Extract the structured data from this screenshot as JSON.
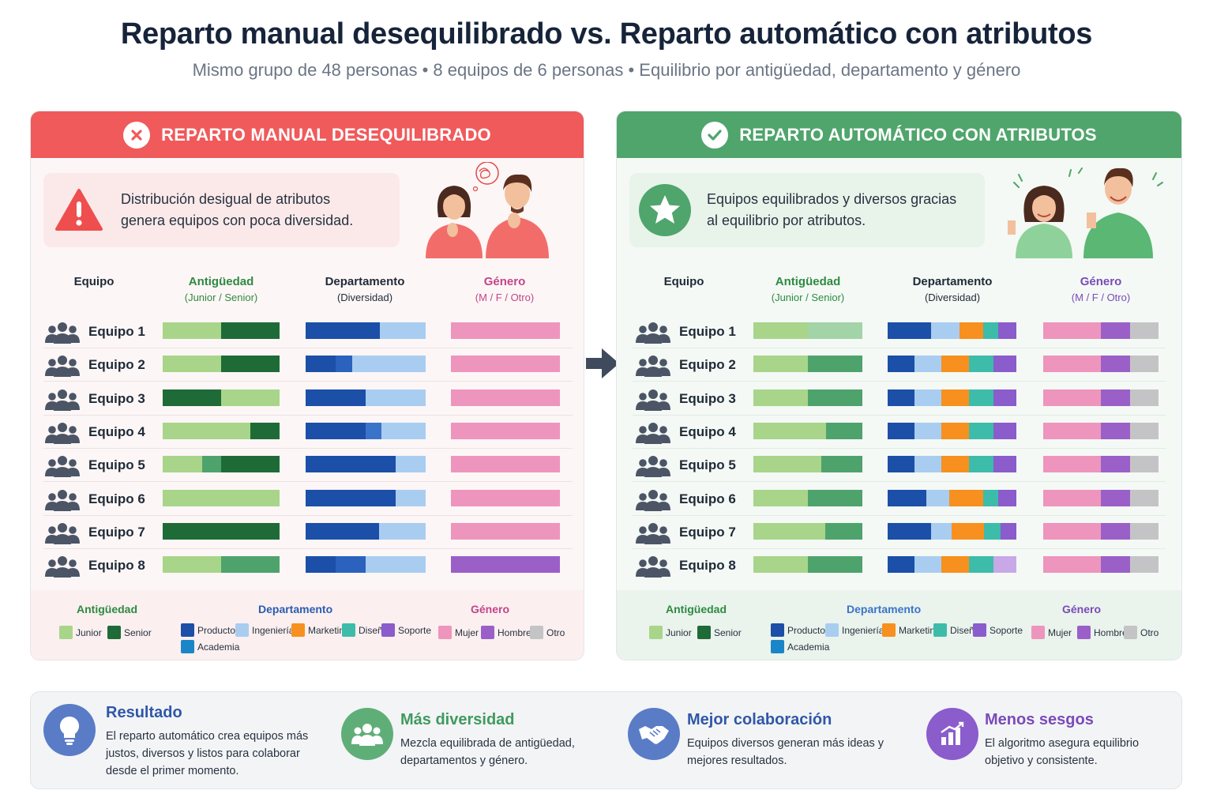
{
  "title": "Reparto manual desequilibrado vs. Reparto automático con atributos",
  "subtitle": "Mismo grupo de 48 personas • 8 equipos de 6 personas • Equilibrio por antigüedad, departamento y género",
  "colors": {
    "junior": "#a8d58a",
    "senior": "#1e6b37",
    "senior_mid": "#4ea36d",
    "senior_light": "#a2d4a8",
    "producto": "#1b4fa8",
    "ingenieria": "#a9cdf0",
    "marketing": "#f7901e",
    "diseno": "#3dbcaa",
    "soporte": "#8a5ccc",
    "academia": "#1a86c8",
    "mujer": "#ee95bd",
    "hombre": "#9a60c8",
    "otro": "#c4c4c6",
    "red": "#f05a5b",
    "green": "#4fa56b"
  },
  "manual": {
    "header": "REPARTO MANUAL DESEQUILIBRADO",
    "header_icon": "x-circle-icon",
    "callout": "Distribución desigual de atributos genera equipos con poca diversidad.",
    "columns": {
      "team": "Equipo",
      "seniority": "Antigüedad",
      "seniority_sub": "(Junior / Senior)",
      "department": "Departamento",
      "department_sub": "(Diversidad)",
      "gender": "Género",
      "gender_sub": "(M / F / Otro)"
    },
    "teams": [
      {
        "name": "Equipo 1",
        "seniority": [
          [
            "#a8d58a",
            0.5
          ],
          [
            "#1e6b37",
            0.5
          ]
        ],
        "department": [
          [
            "#1b4fa8",
            0.62
          ],
          [
            "#a9cdf0",
            0.38
          ]
        ],
        "gender": [
          [
            "#ee95bd",
            1.0
          ]
        ]
      },
      {
        "name": "Equipo 2",
        "seniority": [
          [
            "#a8d58a",
            0.5
          ],
          [
            "#1e6b37",
            0.5
          ]
        ],
        "department": [
          [
            "#1b4fa8",
            0.25
          ],
          [
            "#2a62bd",
            0.14
          ],
          [
            "#a9cdf0",
            0.61
          ]
        ],
        "gender": [
          [
            "#ee95bd",
            1.0
          ]
        ]
      },
      {
        "name": "Equipo 3",
        "seniority": [
          [
            "#1e6b37",
            0.5
          ],
          [
            "#a8d58a",
            0.5
          ]
        ],
        "department": [
          [
            "#1b4fa8",
            0.5
          ],
          [
            "#a9cdf0",
            0.5
          ]
        ],
        "gender": [
          [
            "#ee95bd",
            1.0
          ]
        ]
      },
      {
        "name": "Equipo 4",
        "seniority": [
          [
            "#a8d58a",
            0.75
          ],
          [
            "#1e6b37",
            0.25
          ]
        ],
        "department": [
          [
            "#1b4fa8",
            0.5
          ],
          [
            "#3a74c9",
            0.13
          ],
          [
            "#a9cdf0",
            0.37
          ]
        ],
        "gender": [
          [
            "#ee95bd",
            1.0
          ]
        ]
      },
      {
        "name": "Equipo 5",
        "seniority": [
          [
            "#a8d58a",
            0.34
          ],
          [
            "#4ea36d",
            0.16
          ],
          [
            "#1e6b37",
            0.5
          ]
        ],
        "department": [
          [
            "#1b4fa8",
            0.75
          ],
          [
            "#a9cdf0",
            0.25
          ]
        ],
        "gender": [
          [
            "#ee95bd",
            1.0
          ]
        ]
      },
      {
        "name": "Equipo 6",
        "seniority": [
          [
            "#a8d58a",
            1.0
          ]
        ],
        "department": [
          [
            "#1b4fa8",
            0.75
          ],
          [
            "#a9cdf0",
            0.25
          ]
        ],
        "gender": [
          [
            "#ee95bd",
            1.0
          ]
        ]
      },
      {
        "name": "Equipo 7",
        "seniority": [
          [
            "#1e6b37",
            1.0
          ]
        ],
        "department": [
          [
            "#1b4fa8",
            0.61
          ],
          [
            "#a9cdf0",
            0.39
          ]
        ],
        "gender": [
          [
            "#ee95bd",
            1.0
          ]
        ]
      },
      {
        "name": "Equipo 8",
        "seniority": [
          [
            "#a8d58a",
            0.5
          ],
          [
            "#4ea36d",
            0.5
          ]
        ],
        "department": [
          [
            "#1b4fa8",
            0.25
          ],
          [
            "#2a62bd",
            0.25
          ],
          [
            "#a9cdf0",
            0.5
          ]
        ],
        "gender": [
          [
            "#9a60c8",
            1.0
          ]
        ]
      }
    ]
  },
  "auto": {
    "header": "REPARTO AUTOMÁTICO CON ATRIBUTOS",
    "header_icon": "check-circle-icon",
    "callout": "Equipos equilibrados y diversos gracias al equilibrio por atributos.",
    "columns": {
      "team": "Equipo",
      "seniority": "Antigüedad",
      "seniority_sub": "(Junior / Senior)",
      "department": "Departamento",
      "department_sub": "(Diversidad)",
      "gender": "Género",
      "gender_sub": "(M / F / Otro)"
    },
    "teams": [
      {
        "name": "Equipo 1",
        "seniority": [
          [
            "#a8d58a",
            0.5
          ],
          [
            "#a2d4a8",
            0.5
          ]
        ],
        "department": [
          [
            "#1b4fa8",
            0.34
          ],
          [
            "#a9cdf0",
            0.22
          ],
          [
            "#f7901e",
            0.18
          ],
          [
            "#3dbcaa",
            0.12
          ],
          [
            "#8a5ccc",
            0.14
          ]
        ],
        "gender": [
          [
            "#ee95bd",
            0.5
          ],
          [
            "#9a60c8",
            0.25
          ],
          [
            "#c4c4c6",
            0.25
          ]
        ]
      },
      {
        "name": "Equipo 2",
        "seniority": [
          [
            "#a8d58a",
            0.5
          ],
          [
            "#4ea36d",
            0.5
          ]
        ],
        "department": [
          [
            "#1b4fa8",
            0.21
          ],
          [
            "#a9cdf0",
            0.21
          ],
          [
            "#f7901e",
            0.21
          ],
          [
            "#3dbcaa",
            0.19
          ],
          [
            "#8a5ccc",
            0.18
          ]
        ],
        "gender": [
          [
            "#ee95bd",
            0.5
          ],
          [
            "#9a60c8",
            0.25
          ],
          [
            "#c4c4c6",
            0.25
          ]
        ]
      },
      {
        "name": "Equipo 3",
        "seniority": [
          [
            "#a8d58a",
            0.5
          ],
          [
            "#4ea36d",
            0.5
          ]
        ],
        "department": [
          [
            "#1b4fa8",
            0.21
          ],
          [
            "#a9cdf0",
            0.21
          ],
          [
            "#f7901e",
            0.21
          ],
          [
            "#3dbcaa",
            0.19
          ],
          [
            "#8a5ccc",
            0.18
          ]
        ],
        "gender": [
          [
            "#ee95bd",
            0.5
          ],
          [
            "#9a60c8",
            0.25
          ],
          [
            "#c4c4c6",
            0.25
          ]
        ]
      },
      {
        "name": "Equipo 4",
        "seniority": [
          [
            "#a8d58a",
            0.67
          ],
          [
            "#4ea36d",
            0.33
          ]
        ],
        "department": [
          [
            "#1b4fa8",
            0.21
          ],
          [
            "#a9cdf0",
            0.21
          ],
          [
            "#f7901e",
            0.21
          ],
          [
            "#3dbcaa",
            0.19
          ],
          [
            "#8a5ccc",
            0.18
          ]
        ],
        "gender": [
          [
            "#ee95bd",
            0.5
          ],
          [
            "#9a60c8",
            0.25
          ],
          [
            "#c4c4c6",
            0.25
          ]
        ]
      },
      {
        "name": "Equipo 5",
        "seniority": [
          [
            "#a8d58a",
            0.62
          ],
          [
            "#4ea36d",
            0.38
          ]
        ],
        "department": [
          [
            "#1b4fa8",
            0.21
          ],
          [
            "#a9cdf0",
            0.21
          ],
          [
            "#f7901e",
            0.21
          ],
          [
            "#3dbcaa",
            0.19
          ],
          [
            "#8a5ccc",
            0.18
          ]
        ],
        "gender": [
          [
            "#ee95bd",
            0.5
          ],
          [
            "#9a60c8",
            0.25
          ],
          [
            "#c4c4c6",
            0.25
          ]
        ]
      },
      {
        "name": "Equipo 6",
        "seniority": [
          [
            "#a8d58a",
            0.5
          ],
          [
            "#4ea36d",
            0.5
          ]
        ],
        "department": [
          [
            "#1b4fa8",
            0.3
          ],
          [
            "#a9cdf0",
            0.18
          ],
          [
            "#f7901e",
            0.26
          ],
          [
            "#3dbcaa",
            0.12
          ],
          [
            "#8a5ccc",
            0.14
          ]
        ],
        "gender": [
          [
            "#ee95bd",
            0.5
          ],
          [
            "#9a60c8",
            0.25
          ],
          [
            "#c4c4c6",
            0.25
          ]
        ]
      },
      {
        "name": "Equipo 7",
        "seniority": [
          [
            "#a8d58a",
            0.66
          ],
          [
            "#4ea36d",
            0.34
          ]
        ],
        "department": [
          [
            "#1b4fa8",
            0.34
          ],
          [
            "#a9cdf0",
            0.16
          ],
          [
            "#f7901e",
            0.25
          ],
          [
            "#3dbcaa",
            0.13
          ],
          [
            "#8a5ccc",
            0.12
          ]
        ],
        "gender": [
          [
            "#ee95bd",
            0.5
          ],
          [
            "#9a60c8",
            0.25
          ],
          [
            "#c4c4c6",
            0.25
          ]
        ]
      },
      {
        "name": "Equipo 8",
        "seniority": [
          [
            "#a8d58a",
            0.5
          ],
          [
            "#4ea36d",
            0.5
          ]
        ],
        "department": [
          [
            "#1b4fa8",
            0.21
          ],
          [
            "#a9cdf0",
            0.21
          ],
          [
            "#f7901e",
            0.21
          ],
          [
            "#3dbcaa",
            0.19
          ],
          [
            "#c8a8e6",
            0.18
          ]
        ],
        "gender": [
          [
            "#ee95bd",
            0.5
          ],
          [
            "#9a60c8",
            0.25
          ],
          [
            "#c4c4c6",
            0.25
          ]
        ]
      }
    ]
  },
  "legend": {
    "seniority_title": "Antigüedad",
    "department_title": "Departamento",
    "gender_title": "Género",
    "junior": "Junior",
    "senior": "Senior",
    "producto": "Producto",
    "ingenieria": "Ingeniería",
    "marketing": "Marketing",
    "diseno": "Diseño",
    "soporte": "Soporte",
    "academia": "Academia",
    "mujer": "Mujer",
    "hombre": "Hombre",
    "otro": "Otro"
  },
  "bottom": [
    {
      "title": "Resultado",
      "text": "El reparto automático crea equipos más justos, diversos y listos para colaborar desde el primer momento.",
      "icon": "lightbulb-icon",
      "color": "#2f57a8",
      "circle": "#5a7cc7"
    },
    {
      "title": "Más diversidad",
      "text": "Mezcla equilibrada de antigüedad, departamentos y género.",
      "icon": "group-icon",
      "color": "#3f9a5e",
      "circle": "#5fae78"
    },
    {
      "title": "Mejor colaboración",
      "text": "Equipos diversos generan más ideas y mejores resultados.",
      "icon": "handshake-icon",
      "color": "#2f57a8",
      "circle": "#5a7cc7"
    },
    {
      "title": "Menos sesgos",
      "text": "El algoritmo asegura equilibrio objetivo y consistente.",
      "icon": "chart-icon",
      "color": "#7a4bb8",
      "circle": "#8a5ccc"
    }
  ]
}
